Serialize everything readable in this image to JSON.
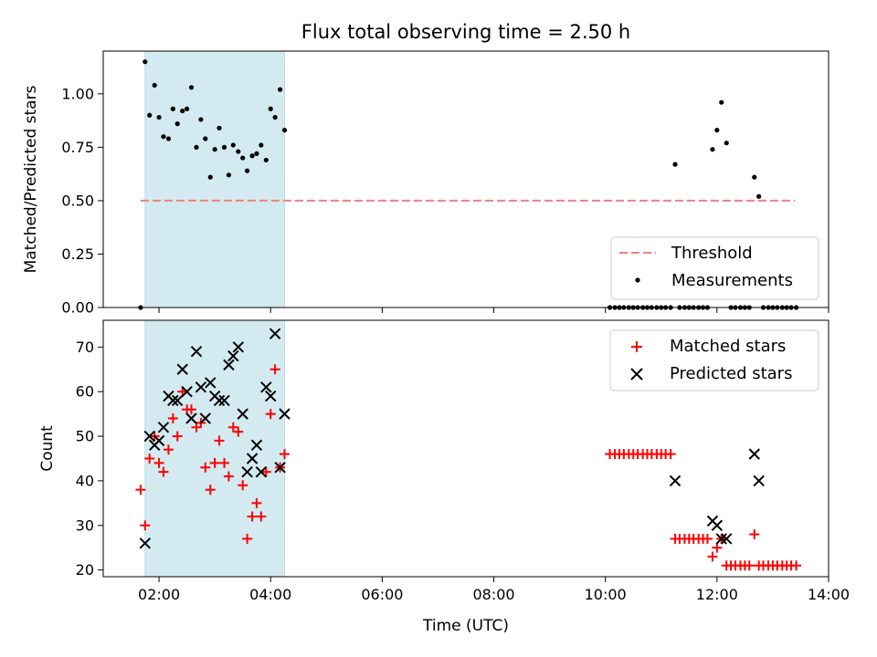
{
  "chart_data": {
    "type": "scatter",
    "title": "Flux total observing time = 2.50 h",
    "xlabel": "Time (UTC)",
    "xlim": [
      1.0,
      14.0
    ],
    "x_ticks": [
      2,
      4,
      6,
      8,
      10,
      12,
      14
    ],
    "x_tick_labels": [
      "02:00",
      "04:00",
      "06:00",
      "08:00",
      "10:00",
      "12:00",
      "14:00"
    ],
    "shaded_interval": [
      1.75,
      4.25
    ],
    "shade_color": "#d3eaf0",
    "panels": [
      {
        "ylabel": "Matched/Predicted stars",
        "ylim": [
          0.0,
          1.2
        ],
        "y_ticks": [
          0.0,
          0.25,
          0.5,
          0.75,
          1.0
        ],
        "y_tick_labels": [
          "0.00",
          "0.25",
          "0.50",
          "0.75",
          "1.00"
        ],
        "legend_position": "bottom-right",
        "threshold": {
          "name": "Threshold",
          "value": 0.5,
          "x_range": [
            1.67,
            13.4
          ],
          "color": "#f08080"
        },
        "measurements": {
          "name": "Measurements",
          "color": "#000000",
          "points": [
            [
              1.67,
              0.0
            ],
            [
              1.75,
              1.15
            ],
            [
              1.83,
              0.9
            ],
            [
              1.92,
              1.04
            ],
            [
              2.0,
              0.89
            ],
            [
              2.08,
              0.8
            ],
            [
              2.17,
              0.79
            ],
            [
              2.25,
              0.93
            ],
            [
              2.33,
              0.86
            ],
            [
              2.42,
              0.92
            ],
            [
              2.5,
              0.93
            ],
            [
              2.58,
              1.03
            ],
            [
              2.67,
              0.75
            ],
            [
              2.75,
              0.88
            ],
            [
              2.83,
              0.79
            ],
            [
              2.92,
              0.61
            ],
            [
              3.0,
              0.74
            ],
            [
              3.08,
              0.84
            ],
            [
              3.17,
              0.75
            ],
            [
              3.25,
              0.62
            ],
            [
              3.33,
              0.76
            ],
            [
              3.42,
              0.73
            ],
            [
              3.5,
              0.7
            ],
            [
              3.58,
              0.64
            ],
            [
              3.67,
              0.71
            ],
            [
              3.75,
              0.72
            ],
            [
              3.83,
              0.76
            ],
            [
              3.92,
              0.69
            ],
            [
              4.0,
              0.93
            ],
            [
              4.08,
              0.89
            ],
            [
              4.17,
              1.02
            ],
            [
              4.25,
              0.83
            ],
            [
              10.08,
              0.0
            ],
            [
              10.17,
              0.0
            ],
            [
              10.25,
              0.0
            ],
            [
              10.33,
              0.0
            ],
            [
              10.42,
              0.0
            ],
            [
              10.5,
              0.0
            ],
            [
              10.58,
              0.0
            ],
            [
              10.67,
              0.0
            ],
            [
              10.75,
              0.0
            ],
            [
              10.83,
              0.0
            ],
            [
              10.92,
              0.0
            ],
            [
              11.0,
              0.0
            ],
            [
              11.08,
              0.0
            ],
            [
              11.17,
              0.0
            ],
            [
              11.25,
              0.67
            ],
            [
              11.33,
              0.0
            ],
            [
              11.42,
              0.0
            ],
            [
              11.5,
              0.0
            ],
            [
              11.58,
              0.0
            ],
            [
              11.67,
              0.0
            ],
            [
              11.75,
              0.0
            ],
            [
              11.83,
              0.0
            ],
            [
              11.92,
              0.74
            ],
            [
              12.0,
              0.83
            ],
            [
              12.08,
              0.96
            ],
            [
              12.17,
              0.77
            ],
            [
              12.25,
              0.0
            ],
            [
              12.33,
              0.0
            ],
            [
              12.42,
              0.0
            ],
            [
              12.5,
              0.0
            ],
            [
              12.58,
              0.0
            ],
            [
              12.67,
              0.61
            ],
            [
              12.75,
              0.52
            ],
            [
              12.83,
              0.0
            ],
            [
              12.92,
              0.0
            ],
            [
              13.0,
              0.0
            ],
            [
              13.08,
              0.0
            ],
            [
              13.17,
              0.0
            ],
            [
              13.25,
              0.0
            ],
            [
              13.33,
              0.0
            ],
            [
              13.42,
              0.0
            ]
          ]
        }
      },
      {
        "ylabel": "Count",
        "ylim": [
          18.5,
          76.0
        ],
        "y_ticks": [
          20,
          30,
          40,
          50,
          60,
          70
        ],
        "y_tick_labels": [
          "20",
          "30",
          "40",
          "50",
          "60",
          "70"
        ],
        "legend_position": "top-right",
        "series": [
          {
            "name": "Matched stars",
            "marker": "plus",
            "color": "#ff0000",
            "points": [
              [
                1.67,
                38
              ],
              [
                1.75,
                30
              ],
              [
                1.83,
                45
              ],
              [
                1.92,
                50
              ],
              [
                2.0,
                44
              ],
              [
                2.08,
                42
              ],
              [
                2.17,
                47
              ],
              [
                2.25,
                54
              ],
              [
                2.33,
                50
              ],
              [
                2.42,
                60
              ],
              [
                2.5,
                56
              ],
              [
                2.58,
                56
              ],
              [
                2.67,
                52
              ],
              [
                2.75,
                53
              ],
              [
                2.83,
                43
              ],
              [
                2.92,
                38
              ],
              [
                3.0,
                44
              ],
              [
                3.08,
                49
              ],
              [
                3.17,
                44
              ],
              [
                3.25,
                41
              ],
              [
                3.33,
                52
              ],
              [
                3.42,
                51
              ],
              [
                3.5,
                39
              ],
              [
                3.58,
                27
              ],
              [
                3.67,
                32
              ],
              [
                3.75,
                35
              ],
              [
                3.83,
                32
              ],
              [
                3.92,
                42
              ],
              [
                4.0,
                55
              ],
              [
                4.08,
                65
              ],
              [
                4.17,
                43
              ],
              [
                4.25,
                46
              ],
              [
                10.08,
                46
              ],
              [
                10.17,
                46
              ],
              [
                10.25,
                46
              ],
              [
                10.33,
                46
              ],
              [
                10.42,
                46
              ],
              [
                10.5,
                46
              ],
              [
                10.58,
                46
              ],
              [
                10.67,
                46
              ],
              [
                10.75,
                46
              ],
              [
                10.83,
                46
              ],
              [
                10.92,
                46
              ],
              [
                11.0,
                46
              ],
              [
                11.08,
                46
              ],
              [
                11.17,
                46
              ],
              [
                11.25,
                27
              ],
              [
                11.33,
                27
              ],
              [
                11.42,
                27
              ],
              [
                11.5,
                27
              ],
              [
                11.58,
                27
              ],
              [
                11.67,
                27
              ],
              [
                11.75,
                27
              ],
              [
                11.83,
                27
              ],
              [
                11.92,
                23
              ],
              [
                12.0,
                25
              ],
              [
                12.08,
                27
              ],
              [
                12.17,
                21
              ],
              [
                12.25,
                21
              ],
              [
                12.33,
                21
              ],
              [
                12.42,
                21
              ],
              [
                12.5,
                21
              ],
              [
                12.58,
                21
              ],
              [
                12.67,
                28
              ],
              [
                12.75,
                21
              ],
              [
                12.83,
                21
              ],
              [
                12.92,
                21
              ],
              [
                13.0,
                21
              ],
              [
                13.08,
                21
              ],
              [
                13.17,
                21
              ],
              [
                13.25,
                21
              ],
              [
                13.33,
                21
              ],
              [
                13.42,
                21
              ]
            ]
          },
          {
            "name": "Predicted stars",
            "marker": "x",
            "color": "#000000",
            "points": [
              [
                1.75,
                26
              ],
              [
                1.83,
                50
              ],
              [
                1.92,
                48
              ],
              [
                2.0,
                49
              ],
              [
                2.08,
                52
              ],
              [
                2.17,
                59
              ],
              [
                2.25,
                58
              ],
              [
                2.33,
                58
              ],
              [
                2.42,
                65
              ],
              [
                2.5,
                60
              ],
              [
                2.58,
                54
              ],
              [
                2.67,
                69
              ],
              [
                2.75,
                61
              ],
              [
                2.83,
                54
              ],
              [
                2.92,
                62
              ],
              [
                3.0,
                59
              ],
              [
                3.08,
                58
              ],
              [
                3.17,
                58
              ],
              [
                3.25,
                66
              ],
              [
                3.33,
                68
              ],
              [
                3.42,
                70
              ],
              [
                3.5,
                55
              ],
              [
                3.58,
                42
              ],
              [
                3.67,
                45
              ],
              [
                3.75,
                48
              ],
              [
                3.83,
                42
              ],
              [
                3.92,
                61
              ],
              [
                4.0,
                59
              ],
              [
                4.08,
                73
              ],
              [
                4.17,
                43
              ],
              [
                4.25,
                55
              ],
              [
                11.25,
                40
              ],
              [
                11.92,
                31
              ],
              [
                12.0,
                30
              ],
              [
                12.08,
                27
              ],
              [
                12.17,
                27
              ],
              [
                12.67,
                46
              ],
              [
                12.75,
                40
              ]
            ]
          }
        ]
      }
    ]
  }
}
